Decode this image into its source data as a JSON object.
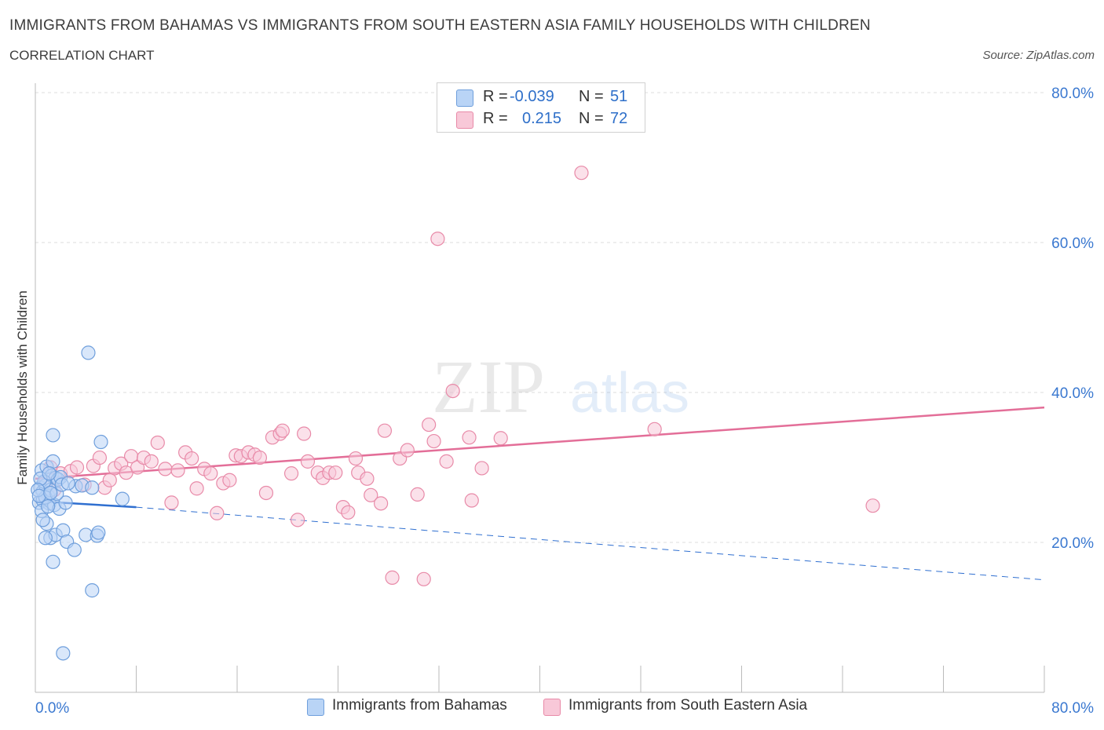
{
  "header": {
    "title": "IMMIGRANTS FROM BAHAMAS VS IMMIGRANTS FROM SOUTH EASTERN ASIA FAMILY HOUSEHOLDS WITH CHILDREN",
    "subtitle": "CORRELATION CHART",
    "source": "Source: ZipAtlas.com"
  },
  "legend": {
    "rows": [
      {
        "r_label": "R =",
        "r_value": "-0.039",
        "n_label": "N =",
        "n_value": "51"
      },
      {
        "r_label": "R =",
        "r_value": "0.215",
        "n_label": "N =",
        "n_value": "72"
      }
    ]
  },
  "bottom_legend": {
    "series1": "Immigrants from Bahamas",
    "series2": "Immigrants from South Eastern Asia"
  },
  "colors": {
    "blue_fill": "#b9d4f6",
    "blue_stroke": "#6f9fdc",
    "blue_line": "#2f6fd0",
    "pink_fill": "#f8c8d8",
    "pink_stroke": "#e88aa8",
    "pink_line": "#e36e98",
    "axis_text": "#3a78d0",
    "grid": "#dcdcdc"
  },
  "watermark": {
    "zip": "ZIP",
    "atlas": "atlas"
  },
  "chart_data": {
    "type": "scatter",
    "title": "IMMIGRANTS FROM BAHAMAS VS IMMIGRANTS FROM SOUTH EASTERN ASIA FAMILY HOUSEHOLDS WITH CHILDREN",
    "xlabel": "",
    "ylabel": "Family Households with Children",
    "xlim": [
      0,
      80
    ],
    "ylim": [
      0,
      80
    ],
    "x_tick_labels": [
      "0.0%",
      "80.0%"
    ],
    "y_tick_labels": [
      "20.0%",
      "40.0%",
      "60.0%",
      "80.0%"
    ],
    "y_ticks": [
      20,
      40,
      60,
      80
    ],
    "grid": true,
    "legend_position": "top-center",
    "series": [
      {
        "name": "Immigrants from Bahamas",
        "R": -0.039,
        "N": 51,
        "trend": {
          "x": [
            0,
            8
          ],
          "y": [
            25.5,
            24.7
          ],
          "dashed_extension_to": [
            80,
            15.0
          ]
        },
        "points": [
          [
            0.4,
            27.3
          ],
          [
            0.6,
            26.8
          ],
          [
            0.8,
            27.6
          ],
          [
            1.0,
            26.2
          ],
          [
            1.2,
            27.0
          ],
          [
            0.5,
            29.6
          ],
          [
            0.9,
            30.1
          ],
          [
            1.4,
            30.8
          ],
          [
            1.3,
            28.9
          ],
          [
            1.6,
            28.6
          ],
          [
            1.8,
            28.4
          ],
          [
            2.0,
            28.7
          ],
          [
            0.7,
            28.1
          ],
          [
            0.3,
            25.3
          ],
          [
            0.6,
            25.6
          ],
          [
            1.1,
            25.2
          ],
          [
            1.5,
            25.0
          ],
          [
            1.9,
            24.5
          ],
          [
            2.4,
            25.3
          ],
          [
            0.5,
            24.2
          ],
          [
            0.9,
            22.5
          ],
          [
            1.2,
            20.6
          ],
          [
            1.6,
            21.0
          ],
          [
            2.2,
            21.6
          ],
          [
            1.4,
            17.4
          ],
          [
            2.5,
            20.1
          ],
          [
            3.1,
            19.0
          ],
          [
            4.0,
            21.0
          ],
          [
            4.9,
            20.9
          ],
          [
            5.0,
            21.3
          ],
          [
            3.2,
            27.5
          ],
          [
            3.7,
            27.6
          ],
          [
            4.5,
            27.3
          ],
          [
            6.9,
            25.8
          ],
          [
            1.4,
            34.3
          ],
          [
            5.2,
            33.4
          ],
          [
            4.2,
            45.3
          ],
          [
            4.5,
            13.6
          ],
          [
            2.2,
            5.2
          ],
          [
            0.6,
            23.0
          ],
          [
            0.8,
            26.0
          ],
          [
            1.0,
            24.8
          ],
          [
            0.4,
            28.5
          ],
          [
            1.7,
            26.5
          ],
          [
            2.1,
            27.7
          ],
          [
            1.1,
            29.2
          ],
          [
            0.2,
            27.0
          ],
          [
            0.3,
            26.2
          ],
          [
            1.2,
            26.6
          ],
          [
            0.8,
            20.6
          ],
          [
            2.6,
            27.9
          ]
        ]
      },
      {
        "name": "Immigrants from South Eastern Asia",
        "R": 0.215,
        "N": 72,
        "trend": {
          "x": [
            0,
            80
          ],
          "y": [
            28.5,
            38.0
          ]
        },
        "points": [
          [
            0.8,
            28.0
          ],
          [
            1.5,
            27.0
          ],
          [
            2.0,
            29.2
          ],
          [
            2.8,
            29.5
          ],
          [
            3.3,
            30.0
          ],
          [
            3.9,
            27.7
          ],
          [
            4.6,
            30.2
          ],
          [
            5.1,
            31.3
          ],
          [
            5.5,
            27.3
          ],
          [
            5.9,
            28.3
          ],
          [
            6.3,
            29.9
          ],
          [
            6.8,
            30.5
          ],
          [
            7.2,
            29.3
          ],
          [
            7.6,
            31.5
          ],
          [
            8.1,
            30.0
          ],
          [
            8.6,
            31.3
          ],
          [
            9.2,
            30.8
          ],
          [
            9.7,
            33.3
          ],
          [
            10.3,
            29.8
          ],
          [
            10.8,
            25.3
          ],
          [
            11.3,
            29.6
          ],
          [
            11.9,
            32.0
          ],
          [
            12.4,
            31.2
          ],
          [
            12.8,
            27.2
          ],
          [
            13.4,
            29.8
          ],
          [
            13.9,
            29.2
          ],
          [
            14.4,
            23.9
          ],
          [
            14.9,
            27.9
          ],
          [
            15.4,
            28.3
          ],
          [
            15.9,
            31.6
          ],
          [
            16.3,
            31.5
          ],
          [
            16.9,
            32.0
          ],
          [
            17.4,
            31.7
          ],
          [
            17.8,
            31.3
          ],
          [
            18.3,
            26.6
          ],
          [
            18.8,
            34.0
          ],
          [
            19.4,
            34.5
          ],
          [
            19.6,
            34.9
          ],
          [
            20.3,
            29.2
          ],
          [
            20.8,
            23.0
          ],
          [
            21.3,
            34.5
          ],
          [
            21.6,
            30.8
          ],
          [
            22.4,
            29.3
          ],
          [
            22.8,
            28.6
          ],
          [
            23.3,
            29.3
          ],
          [
            23.8,
            29.3
          ],
          [
            24.4,
            24.7
          ],
          [
            24.8,
            24.0
          ],
          [
            25.4,
            31.2
          ],
          [
            25.6,
            29.3
          ],
          [
            26.3,
            28.5
          ],
          [
            26.6,
            26.3
          ],
          [
            27.4,
            25.2
          ],
          [
            27.7,
            34.9
          ],
          [
            28.3,
            15.3
          ],
          [
            28.9,
            31.2
          ],
          [
            29.5,
            32.3
          ],
          [
            30.3,
            26.4
          ],
          [
            30.8,
            15.1
          ],
          [
            31.2,
            35.7
          ],
          [
            31.6,
            33.5
          ],
          [
            31.9,
            60.5
          ],
          [
            32.6,
            30.8
          ],
          [
            33.1,
            40.2
          ],
          [
            34.4,
            34.0
          ],
          [
            34.6,
            25.6
          ],
          [
            35.4,
            29.9
          ],
          [
            36.9,
            33.9
          ],
          [
            43.3,
            69.3
          ],
          [
            49.1,
            35.1
          ],
          [
            66.4,
            24.9
          ],
          [
            1.2,
            30.0
          ]
        ]
      }
    ]
  }
}
